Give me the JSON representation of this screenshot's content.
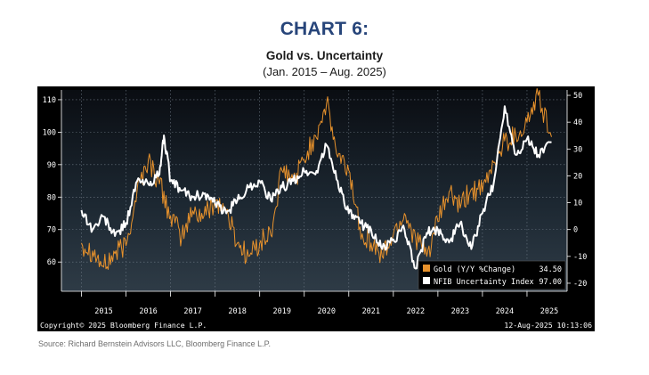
{
  "heading": "CHART 6:",
  "chart_data": {
    "type": "line",
    "title": "Gold vs. Uncertainty",
    "subtitle": "(Jan. 2015 – Aug. 2025)",
    "x_tick_labels": [
      "2015",
      "2016",
      "2017",
      "2018",
      "2019",
      "2020",
      "2021",
      "2022",
      "2023",
      "2024",
      "2025"
    ],
    "left_axis": {
      "ticks": [
        60,
        70,
        80,
        90,
        100,
        110
      ],
      "range": [
        51,
        113
      ]
    },
    "right_axis": {
      "ticks": [
        -20,
        -10,
        0,
        10,
        20,
        30,
        40,
        50
      ],
      "range": [
        -23,
        52
      ]
    },
    "series": [
      {
        "name": "Gold (Y/Y %Change)",
        "axis": "right",
        "color": "#e8922c",
        "last_value": "34.50",
        "x": [
          2015.0,
          2015.25,
          2015.5,
          2015.75,
          2016.0,
          2016.25,
          2016.5,
          2016.75,
          2017.0,
          2017.25,
          2017.5,
          2017.75,
          2018.0,
          2018.25,
          2018.5,
          2018.75,
          2019.0,
          2019.25,
          2019.5,
          2019.75,
          2020.0,
          2020.25,
          2020.5,
          2020.75,
          2021.0,
          2021.25,
          2021.5,
          2021.75,
          2022.0,
          2022.25,
          2022.5,
          2022.75,
          2023.0,
          2023.25,
          2023.5,
          2023.75,
          2024.0,
          2024.25,
          2024.5,
          2024.75,
          2025.0,
          2025.25,
          2025.55
        ],
        "values": [
          -5,
          -8,
          -14,
          -9,
          -6,
          15,
          26,
          17,
          5,
          -3,
          7,
          5,
          11,
          7,
          -5,
          -10,
          -5,
          -2,
          22,
          18,
          26,
          35,
          47,
          27,
          22,
          1,
          -5,
          -10,
          -2,
          6,
          -3,
          -10,
          3,
          14,
          8,
          15,
          14,
          25,
          33,
          35,
          40,
          50,
          34.5
        ]
      },
      {
        "name": "NFIB Uncertainty Index",
        "axis": "left",
        "color": "#ffffff",
        "last_value": "97.00",
        "x": [
          2015.0,
          2015.25,
          2015.5,
          2015.75,
          2016.0,
          2016.25,
          2016.5,
          2016.75,
          2016.85,
          2017.0,
          2017.25,
          2017.5,
          2017.75,
          2018.0,
          2018.25,
          2018.5,
          2018.75,
          2019.0,
          2019.25,
          2019.5,
          2019.75,
          2020.0,
          2020.25,
          2020.5,
          2020.75,
          2021.0,
          2021.25,
          2021.5,
          2021.75,
          2022.0,
          2022.25,
          2022.5,
          2022.75,
          2023.0,
          2023.25,
          2023.5,
          2023.75,
          2024.0,
          2024.25,
          2024.5,
          2024.75,
          2025.0,
          2025.25,
          2025.55
        ],
        "values": [
          76,
          70,
          74,
          68,
          72,
          85,
          84,
          87,
          99,
          85,
          82,
          80,
          81,
          78,
          75,
          79,
          83,
          85,
          79,
          83,
          85,
          88,
          87,
          96,
          85,
          75,
          72,
          70,
          64,
          67,
          70,
          58,
          69,
          70,
          66,
          72,
          64,
          75,
          84,
          108,
          93,
          98,
          93,
          97
        ]
      }
    ],
    "legend_position": "bottom-right",
    "grid": true,
    "copyright": "Copyright© 2025 Bloomberg Finance L.P.",
    "timestamp": "12-Aug-2025 10:13:06"
  },
  "source": "Source: Richard Bernstein Advisors LLC, Bloomberg Finance L.P."
}
